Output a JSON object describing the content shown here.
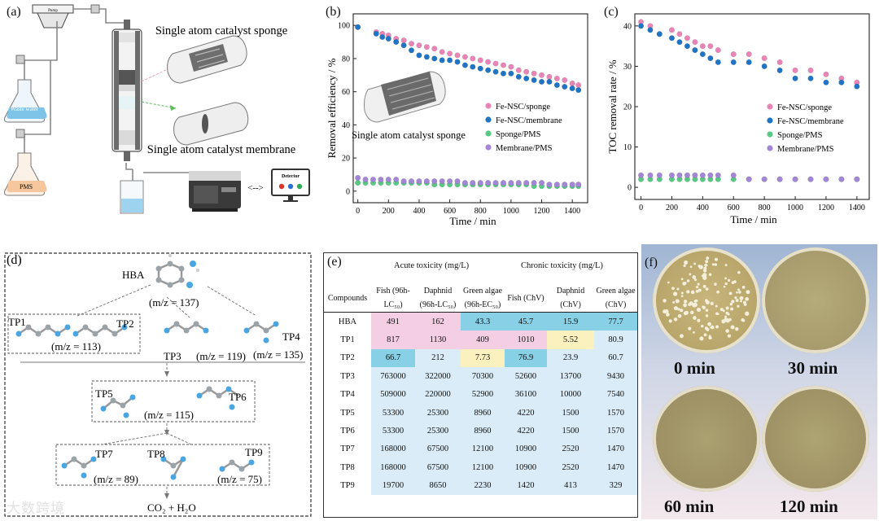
{
  "panel_labels": {
    "a": "(a)",
    "b": "(b)",
    "c": "(c)",
    "d": "(d)",
    "e": "(e)",
    "f": "(f)"
  },
  "panel_a": {
    "pump_label": "Pump",
    "waste_water_label": "Waste water",
    "pms_flask_label": "PMS",
    "sponge_title": "Single atom catalyst sponge",
    "membrane_title": "Single atom catalyst membrane",
    "detector_label": "Detector",
    "arrow_label": "<-->"
  },
  "panel_d": {
    "hba_label": "HBA",
    "hba_mz": "(m/z = 137)",
    "tp1": "TP1",
    "tp2": "TP2",
    "tp12_mz": "(m/z = 113)",
    "tp3": "TP3",
    "tp3_mz": "(m/z = 119)",
    "tp4": "TP4",
    "tp4_mz": "(m/z = 135)",
    "tp5": "TP5",
    "tp6": "TP6",
    "tp56_mz": "(m/z = 115)",
    "tp7": "TP7",
    "tp7_mz": "(m/z = 89)",
    "tp8": "TP8",
    "tp9": "TP9",
    "tp89_mz": "(m/z = 75)",
    "final": "CO₂ + H₂O"
  },
  "panel_e": {
    "group_acute": "Acute toxicity (mg/L)",
    "group_chronic": "Chronic toxicity (mg/L)",
    "columns": [
      "Compounds",
      "Fish (96h-LC₅₀)",
      "Daphnid (96h-LC₅₀)",
      "Green algae (96h-EC₅₀)",
      "Fish (ChV)",
      "Daphnid (ChV)",
      "Green algae (ChV)"
    ],
    "rows": [
      [
        "HBA",
        "491",
        "162",
        "43.3",
        "45.7",
        "15.9",
        "77.7"
      ],
      [
        "TP1",
        "817",
        "1130",
        "409",
        "1010",
        "5.52",
        "80.9"
      ],
      [
        "TP2",
        "66.7",
        "212",
        "7.73",
        "76.9",
        "23.9",
        "60.7"
      ],
      [
        "TP3",
        "763000",
        "322000",
        "70300",
        "52600",
        "13700",
        "9430"
      ],
      [
        "TP4",
        "509000",
        "220000",
        "52900",
        "36100",
        "10000",
        "7540"
      ],
      [
        "TP5",
        "53300",
        "25300",
        "8960",
        "4220",
        "1500",
        "1570"
      ],
      [
        "TP6",
        "53300",
        "25300",
        "8960",
        "4220",
        "1500",
        "1570"
      ],
      [
        "TP7",
        "168000",
        "67500",
        "12100",
        "10900",
        "2520",
        "1470"
      ],
      [
        "TP8",
        "168000",
        "67500",
        "12100",
        "10900",
        "2520",
        "1470"
      ],
      [
        "TP9",
        "19700",
        "8650",
        "2230",
        "1420",
        "413",
        "329"
      ]
    ]
  },
  "panel_f": {
    "captions": [
      "0 min",
      "30 min",
      "60 min",
      "120 min"
    ]
  },
  "watermark": "大数跨境",
  "colors": {
    "pink": "#e884b6",
    "blue": "#1f74c6",
    "green": "#58c983",
    "purple": "#a486d6"
  },
  "chart_data": [
    {
      "type": "scatter",
      "title": "(b)",
      "xlabel": "Time / min",
      "ylabel": "Removal efficiency / %",
      "xlim": [
        -30,
        1500
      ],
      "ylim": [
        -7,
        107
      ],
      "xticks": [
        0,
        200,
        400,
        600,
        800,
        1000,
        1200,
        1400
      ],
      "yticks": [
        0,
        20,
        40,
        60,
        80,
        100
      ],
      "inset_label": "Single atom catalyst sponge",
      "legend": "center-right",
      "series": [
        {
          "name": "Fe-NSC/sponge",
          "color": "#e884b6",
          "x": [
            0,
            120,
            160,
            200,
            250,
            300,
            350,
            400,
            450,
            500,
            550,
            600,
            650,
            700,
            750,
            800,
            850,
            900,
            950,
            1000,
            1050,
            1100,
            1150,
            1200,
            1250,
            1300,
            1350,
            1400,
            1440
          ],
          "y": [
            99,
            96,
            95,
            94,
            92,
            91,
            89,
            88,
            87,
            86,
            84,
            83,
            82,
            81,
            80,
            79,
            78,
            77,
            76,
            75,
            73,
            72,
            71,
            70,
            69,
            68,
            67,
            65,
            64
          ]
        },
        {
          "name": "Fe-NSC/membrane",
          "color": "#1f74c6",
          "x": [
            0,
            120,
            160,
            200,
            250,
            300,
            350,
            400,
            450,
            500,
            550,
            600,
            650,
            700,
            750,
            800,
            850,
            900,
            950,
            1000,
            1050,
            1100,
            1150,
            1200,
            1250,
            1300,
            1350,
            1400,
            1440
          ],
          "y": [
            99,
            95,
            93,
            92,
            90,
            88,
            85,
            82,
            81,
            80,
            79,
            79,
            78,
            76,
            75,
            74,
            73,
            72,
            71,
            71,
            69,
            68,
            67,
            66,
            66,
            64,
            63,
            62,
            61
          ]
        },
        {
          "name": "Sponge/PMS",
          "color": "#58c983",
          "x": [
            0,
            50,
            100,
            150,
            200,
            250,
            300,
            350,
            400,
            450,
            500,
            550,
            600,
            650,
            700,
            750,
            800,
            850,
            900,
            950,
            1000,
            1050,
            1100,
            1150,
            1200,
            1250,
            1300,
            1350,
            1400,
            1440
          ],
          "y": [
            5,
            5,
            5,
            5,
            5,
            5,
            5,
            5,
            5,
            5,
            4,
            4,
            4,
            4,
            4,
            4,
            4,
            4,
            4,
            4,
            4,
            4,
            4,
            3,
            3,
            3,
            3,
            3,
            3,
            3
          ]
        },
        {
          "name": "Membrane/PMS",
          "color": "#a486d6",
          "x": [
            0,
            50,
            100,
            150,
            200,
            250,
            300,
            350,
            400,
            450,
            500,
            550,
            600,
            650,
            700,
            750,
            800,
            850,
            900,
            950,
            1000,
            1050,
            1100,
            1150,
            1200,
            1250,
            1300,
            1350,
            1400,
            1440
          ],
          "y": [
            8,
            7,
            7,
            7,
            7,
            7,
            6,
            6,
            6,
            6,
            6,
            6,
            6,
            6,
            5,
            5,
            5,
            5,
            5,
            5,
            5,
            5,
            5,
            5,
            5,
            4,
            4,
            4,
            4,
            4
          ]
        }
      ]
    },
    {
      "type": "scatter",
      "title": "(c)",
      "xlabel": "Time / min",
      "ylabel": "TOC removal rate / %",
      "xlim": [
        -40,
        1480
      ],
      "ylim": [
        -3,
        43
      ],
      "xticks": [
        0,
        200,
        400,
        600,
        800,
        1000,
        1200,
        1400
      ],
      "yticks": [
        0,
        10,
        20,
        30,
        40
      ],
      "legend": "center-right",
      "series": [
        {
          "name": "Fe-NSC/sponge",
          "color": "#e884b6",
          "x": [
            0,
            60,
            120,
            200,
            250,
            300,
            350,
            400,
            450,
            500,
            600,
            700,
            800,
            900,
            1000,
            1100,
            1200,
            1300,
            1400
          ],
          "y": [
            41,
            40,
            38,
            39,
            38,
            37,
            36,
            35,
            35,
            34,
            33,
            33,
            32,
            31,
            29,
            29,
            28,
            27,
            26
          ]
        },
        {
          "name": "Fe-NSC/membrane",
          "color": "#1f74c6",
          "x": [
            0,
            60,
            120,
            200,
            250,
            300,
            350,
            400,
            450,
            500,
            600,
            700,
            800,
            900,
            1000,
            1100,
            1200,
            1300,
            1400
          ],
          "y": [
            40,
            39,
            38,
            37,
            36,
            35,
            34,
            33,
            32,
            31,
            31,
            31,
            30,
            29,
            27,
            27,
            26,
            26,
            25
          ]
        },
        {
          "name": "Sponge/PMS",
          "color": "#58c983",
          "x": [
            0,
            60,
            120,
            200,
            250,
            300,
            350,
            400,
            450,
            500,
            600,
            700,
            800,
            900,
            1000,
            1100,
            1200,
            1300,
            1400
          ],
          "y": [
            2,
            2,
            2,
            2,
            2,
            2,
            2,
            2,
            2,
            2,
            2,
            2,
            2,
            2,
            2,
            2,
            2,
            2,
            2
          ]
        },
        {
          "name": "Membrane/PMS",
          "color": "#a486d6",
          "x": [
            0,
            60,
            120,
            200,
            250,
            300,
            350,
            400,
            450,
            500,
            600,
            700,
            800,
            900,
            1000,
            1100,
            1200,
            1300,
            1400
          ],
          "y": [
            3,
            3,
            3,
            3,
            3,
            3,
            3,
            3,
            3,
            3,
            3,
            2,
            2,
            2,
            2,
            2,
            2,
            2,
            2
          ]
        }
      ]
    }
  ]
}
